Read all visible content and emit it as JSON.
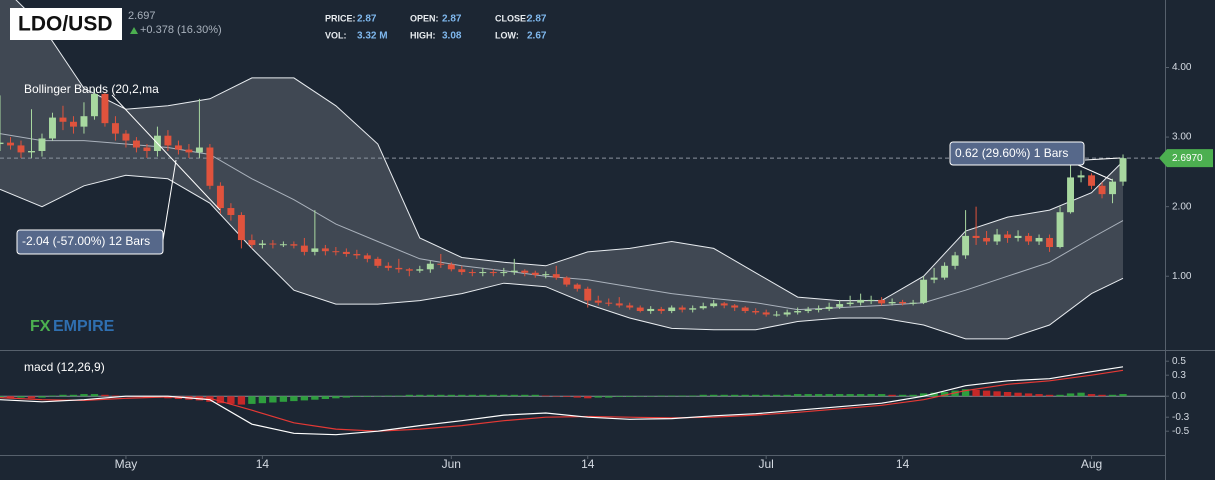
{
  "chart_data": {
    "type": "candlestick",
    "title": "LDO/USD",
    "quote": {
      "price": "2.697",
      "change": "+0.378 (16.30%)"
    },
    "stats": [
      {
        "label": "PRICE:",
        "value": "2.87"
      },
      {
        "label": "OPEN:",
        "value": "2.87"
      },
      {
        "label": "CLOSE:",
        "value": "2.87"
      },
      {
        "label": "VOL:",
        "value": "3.32 M"
      },
      {
        "label": "HIGH:",
        "value": "3.08"
      },
      {
        "label": "LOW:",
        "value": "2.67"
      }
    ],
    "watermark": [
      "FX",
      "EMPIRE"
    ],
    "up_color": "#a8d8a0",
    "down_color": "#e0533d",
    "xlim": [
      0,
      111
    ],
    "xticks": [
      {
        "value": 12,
        "label": "May"
      },
      {
        "value": 25,
        "label": "14"
      },
      {
        "value": 43,
        "label": "Jun"
      },
      {
        "value": 56,
        "label": "14"
      },
      {
        "value": 73,
        "label": "Jul"
      },
      {
        "value": 86,
        "label": "14"
      },
      {
        "value": 104,
        "label": "Aug"
      }
    ],
    "ylim": [
      -0.06,
      4.97
    ],
    "yticks": [
      {
        "value": 4,
        "label": "4.00"
      },
      {
        "value": 3,
        "label": "3.00"
      },
      {
        "value": 2,
        "label": "2.00"
      },
      {
        "value": 1,
        "label": "1.00"
      }
    ],
    "last_price": {
      "value": 2.697,
      "label": "2.6970"
    },
    "x": [
      0,
      1,
      2,
      3,
      4,
      5,
      6,
      7,
      8,
      9,
      10,
      11,
      12,
      13,
      14,
      15,
      16,
      17,
      18,
      19,
      20,
      21,
      22,
      23,
      24,
      25,
      26,
      27,
      28,
      29,
      30,
      31,
      32,
      33,
      34,
      35,
      36,
      37,
      38,
      39,
      40,
      41,
      42,
      43,
      44,
      45,
      46,
      47,
      48,
      49,
      50,
      51,
      52,
      53,
      54,
      55,
      56,
      57,
      58,
      59,
      60,
      61,
      62,
      63,
      64,
      65,
      66,
      67,
      68,
      69,
      70,
      71,
      72,
      73,
      74,
      75,
      76,
      77,
      78,
      79,
      80,
      81,
      82,
      83,
      84,
      85,
      86,
      87,
      88,
      89,
      90,
      91,
      92,
      93,
      94,
      95,
      96,
      97,
      98,
      99,
      100,
      101,
      102,
      103,
      104,
      105,
      106,
      107
    ],
    "open": [
      2.9,
      2.92,
      2.88,
      2.78,
      2.8,
      2.98,
      3.28,
      3.22,
      3.15,
      3.3,
      3.62,
      3.2,
      3.05,
      2.95,
      2.85,
      2.8,
      3.02,
      2.88,
      2.82,
      2.78,
      2.85,
      2.3,
      1.98,
      1.88,
      1.52,
      1.45,
      1.47,
      1.46,
      1.46,
      1.44,
      1.35,
      1.4,
      1.36,
      1.35,
      1.32,
      1.3,
      1.25,
      1.15,
      1.12,
      1.1,
      1.08,
      1.1,
      1.18,
      1.17,
      1.1,
      1.06,
      1.05,
      1.06,
      1.05,
      1.06,
      1.08,
      1.05,
      1.02,
      1.03,
      0.98,
      0.88,
      0.82,
      0.65,
      0.62,
      0.61,
      0.58,
      0.55,
      0.5,
      0.53,
      0.5,
      0.55,
      0.52,
      0.54,
      0.57,
      0.61,
      0.58,
      0.55,
      0.5,
      0.48,
      0.45,
      0.45,
      0.48,
      0.5,
      0.52,
      0.53,
      0.56,
      0.6,
      0.62,
      0.66,
      0.66,
      0.61,
      0.63,
      0.61,
      0.62,
      0.95,
      0.98,
      1.15,
      1.3,
      1.58,
      1.55,
      1.5,
      1.6,
      1.55,
      1.58,
      1.5,
      1.55,
      1.42,
      1.92,
      2.42,
      2.45,
      2.3,
      2.18,
      2.36
    ],
    "high": [
      3.6,
      3.0,
      2.95,
      3.4,
      3.05,
      3.35,
      3.45,
      3.3,
      3.5,
      3.7,
      3.65,
      3.3,
      3.1,
      3.0,
      2.9,
      3.15,
      3.1,
      2.95,
      2.9,
      3.55,
      2.9,
      2.35,
      2.05,
      1.92,
      1.6,
      1.52,
      1.52,
      1.5,
      1.5,
      1.55,
      1.95,
      1.45,
      1.42,
      1.4,
      1.38,
      1.33,
      1.28,
      1.2,
      1.25,
      1.12,
      1.15,
      1.22,
      1.32,
      1.2,
      1.15,
      1.1,
      1.12,
      1.1,
      1.12,
      1.25,
      1.1,
      1.08,
      1.07,
      1.15,
      1.0,
      0.9,
      0.85,
      0.72,
      0.68,
      0.7,
      0.62,
      0.58,
      0.57,
      0.56,
      0.58,
      0.58,
      0.58,
      0.62,
      0.66,
      0.63,
      0.6,
      0.57,
      0.54,
      0.52,
      0.5,
      0.52,
      0.55,
      0.56,
      0.58,
      0.62,
      0.66,
      0.72,
      0.75,
      0.72,
      0.7,
      0.68,
      0.66,
      0.66,
      1.0,
      1.12,
      1.2,
      1.35,
      1.95,
      2.0,
      1.65,
      1.68,
      1.65,
      1.66,
      1.62,
      1.6,
      1.6,
      2.0,
      2.6,
      2.52,
      2.48,
      2.35,
      2.4,
      2.75
    ],
    "low": [
      2.8,
      2.82,
      2.7,
      2.7,
      2.72,
      2.95,
      3.1,
      3.05,
      3.05,
      3.25,
      3.15,
      2.95,
      2.85,
      2.78,
      2.7,
      2.72,
      2.8,
      2.75,
      2.7,
      2.7,
      2.25,
      1.9,
      1.8,
      1.4,
      1.4,
      1.4,
      1.4,
      1.42,
      1.4,
      1.3,
      1.3,
      1.3,
      1.3,
      1.28,
      1.25,
      1.2,
      1.12,
      1.08,
      1.05,
      1.0,
      1.05,
      1.05,
      1.12,
      1.07,
      1.02,
      1.0,
      1.0,
      1.0,
      1.0,
      1.02,
      1.0,
      0.98,
      0.97,
      0.95,
      0.85,
      0.78,
      0.55,
      0.58,
      0.57,
      0.55,
      0.52,
      0.48,
      0.46,
      0.46,
      0.47,
      0.48,
      0.48,
      0.52,
      0.55,
      0.54,
      0.5,
      0.47,
      0.45,
      0.42,
      0.42,
      0.42,
      0.45,
      0.47,
      0.48,
      0.5,
      0.53,
      0.57,
      0.58,
      0.6,
      0.58,
      0.58,
      0.58,
      0.58,
      0.6,
      0.9,
      0.95,
      1.1,
      1.25,
      1.45,
      1.45,
      1.45,
      1.48,
      1.5,
      1.45,
      1.45,
      1.35,
      1.4,
      1.9,
      2.35,
      2.25,
      2.12,
      2.05,
      2.3
    ],
    "close": [
      2.92,
      2.88,
      2.78,
      2.8,
      2.98,
      3.28,
      3.22,
      3.15,
      3.3,
      3.62,
      3.2,
      3.05,
      2.95,
      2.85,
      2.8,
      3.02,
      2.88,
      2.82,
      2.78,
      2.85,
      2.3,
      1.98,
      1.88,
      1.52,
      1.45,
      1.47,
      1.46,
      1.46,
      1.44,
      1.35,
      1.4,
      1.36,
      1.35,
      1.32,
      1.3,
      1.25,
      1.15,
      1.12,
      1.1,
      1.08,
      1.1,
      1.18,
      1.17,
      1.1,
      1.06,
      1.05,
      1.06,
      1.05,
      1.06,
      1.08,
      1.05,
      1.02,
      1.03,
      0.98,
      0.88,
      0.82,
      0.65,
      0.62,
      0.61,
      0.58,
      0.55,
      0.5,
      0.53,
      0.5,
      0.55,
      0.52,
      0.54,
      0.57,
      0.61,
      0.58,
      0.55,
      0.5,
      0.48,
      0.45,
      0.45,
      0.48,
      0.5,
      0.52,
      0.53,
      0.56,
      0.6,
      0.62,
      0.66,
      0.66,
      0.61,
      0.63,
      0.61,
      0.62,
      0.95,
      0.98,
      1.15,
      1.3,
      1.58,
      1.55,
      1.5,
      1.6,
      1.55,
      1.58,
      1.5,
      1.55,
      1.42,
      1.92,
      2.42,
      2.45,
      2.3,
      2.18,
      2.36,
      2.697
    ],
    "bollinger": {
      "label": "Bollinger Bands (20,2,ma",
      "x": [
        0,
        4,
        8,
        12,
        16,
        20,
        24,
        28,
        32,
        36,
        40,
        44,
        48,
        52,
        56,
        60,
        64,
        68,
        72,
        76,
        80,
        84,
        88,
        92,
        96,
        100,
        104,
        107
      ],
      "upper": [
        5.2,
        4.6,
        3.7,
        3.4,
        3.45,
        3.55,
        3.85,
        3.85,
        3.45,
        2.9,
        1.55,
        1.27,
        1.2,
        1.15,
        1.35,
        1.4,
        1.5,
        1.4,
        1.05,
        0.7,
        0.65,
        0.65,
        1.0,
        1.65,
        1.85,
        1.95,
        2.2,
        2.65
      ],
      "middle": [
        3.05,
        2.95,
        2.95,
        2.9,
        2.85,
        2.75,
        2.4,
        2.1,
        1.75,
        1.5,
        1.25,
        1.15,
        1.08,
        1.0,
        0.95,
        0.85,
        0.75,
        0.68,
        0.62,
        0.52,
        0.55,
        0.58,
        0.62,
        0.8,
        1.0,
        1.2,
        1.55,
        1.8
      ],
      "lower": [
        2.25,
        2.0,
        2.3,
        2.45,
        2.4,
        2.05,
        1.4,
        0.8,
        0.6,
        0.6,
        0.65,
        0.75,
        0.9,
        0.85,
        0.6,
        0.4,
        0.25,
        0.23,
        0.23,
        0.35,
        0.4,
        0.4,
        0.3,
        0.1,
        0.1,
        0.3,
        0.75,
        0.97
      ]
    },
    "macd": {
      "label": "macd (12,26,9)",
      "x": [
        0,
        4,
        8,
        12,
        16,
        20,
        24,
        28,
        32,
        36,
        40,
        44,
        48,
        52,
        56,
        60,
        64,
        68,
        72,
        76,
        80,
        84,
        88,
        92,
        96,
        100,
        104,
        107
      ],
      "macd": [
        -0.05,
        -0.08,
        -0.05,
        0.0,
        0.0,
        -0.05,
        -0.4,
        -0.53,
        -0.55,
        -0.5,
        -0.42,
        -0.35,
        -0.27,
        -0.24,
        -0.3,
        -0.33,
        -0.32,
        -0.28,
        -0.25,
        -0.2,
        -0.15,
        -0.1,
        0.0,
        0.15,
        0.22,
        0.25,
        0.35,
        0.42
      ],
      "signal": [
        -0.02,
        -0.05,
        -0.06,
        -0.03,
        -0.01,
        -0.03,
        -0.2,
        -0.38,
        -0.47,
        -0.5,
        -0.47,
        -0.42,
        -0.35,
        -0.3,
        -0.29,
        -0.3,
        -0.31,
        -0.3,
        -0.27,
        -0.23,
        -0.18,
        -0.13,
        -0.05,
        0.08,
        0.17,
        0.22,
        0.3,
        0.37
      ],
      "histogram": [
        -0.02,
        -0.03,
        -0.02,
        -0.03,
        -0.02,
        0.01,
        0.02,
        0.02,
        0.03,
        0.03,
        0.02,
        0.01,
        0.0,
        -0.01,
        -0.02,
        -0.02,
        -0.03,
        -0.04,
        -0.05,
        -0.06,
        -0.08,
        -0.1,
        -0.11,
        -0.12,
        -0.11,
        -0.1,
        -0.09,
        -0.08,
        -0.07,
        -0.06,
        -0.05,
        -0.04,
        -0.03,
        -0.02,
        -0.01,
        -0.01,
        0.0,
        0.01,
        0.01,
        0.02,
        0.02,
        0.02,
        0.02,
        0.02,
        0.02,
        0.02,
        0.02,
        0.02,
        0.02,
        0.02,
        0.02,
        0.02,
        0.01,
        0.0,
        -0.01,
        -0.02,
        -0.03,
        -0.02,
        -0.02,
        -0.01,
        -0.01,
        0.0,
        0.0,
        0.01,
        0.01,
        0.01,
        0.01,
        0.02,
        0.02,
        0.02,
        0.02,
        0.02,
        0.02,
        0.02,
        0.02,
        0.02,
        0.03,
        0.03,
        0.03,
        0.03,
        0.03,
        0.03,
        0.03,
        0.03,
        0.03,
        0.02,
        0.02,
        0.02,
        0.04,
        0.05,
        0.06,
        0.08,
        0.1,
        0.09,
        0.08,
        0.07,
        0.06,
        0.05,
        0.04,
        0.03,
        0.02,
        0.02,
        0.04,
        0.05,
        0.03,
        0.02,
        0.02,
        0.03
      ],
      "macd_color": "#ffffff",
      "signal_color": "#e53935",
      "rise_color": "#2e9e3e",
      "fall_color": "#c62828"
    },
    "y2lim": [
      -0.84,
      0.66
    ],
    "y2ticks": [
      0.5,
      0.3,
      {
        "value": 0,
        "label": "0.0"
      },
      -0.3,
      -0.5
    ],
    "annotations": [
      "-2.04 (-57.00%) 12 Bars",
      "0.62 (29.60%) 1 Bars"
    ]
  }
}
